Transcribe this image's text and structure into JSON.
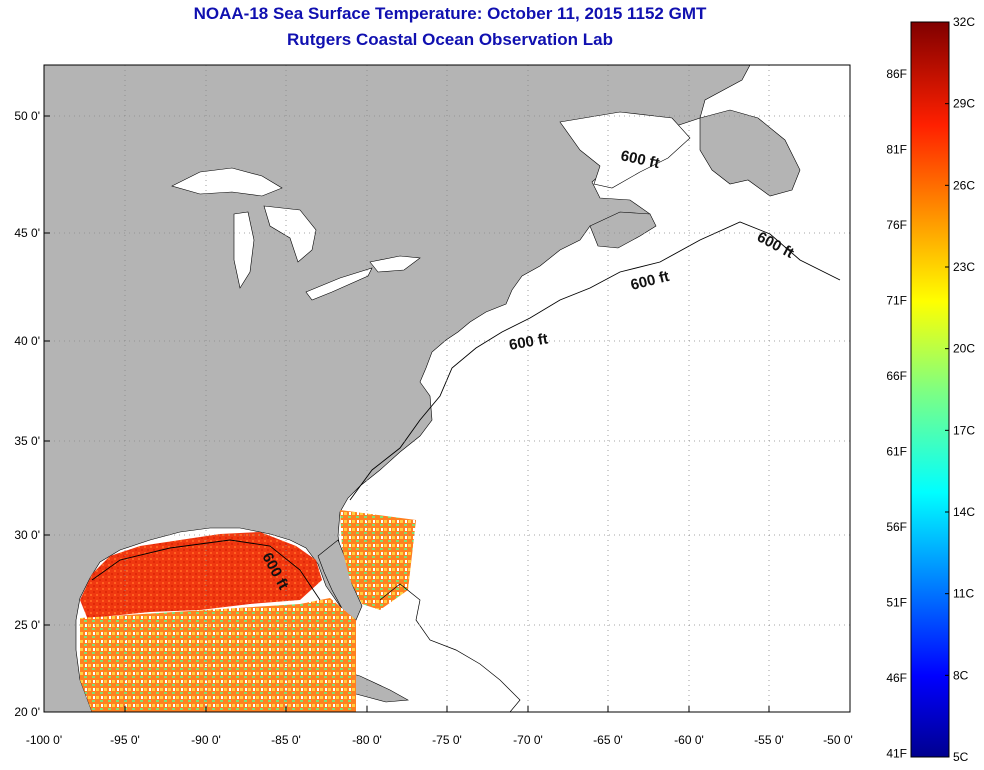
{
  "header": {
    "title": "NOAA-18 Sea Surface Temperature:  October 11, 2015 1152 GMT",
    "subtitle": "Rutgers Coastal Ocean Observation Lab"
  },
  "map": {
    "lon_range": [
      -100,
      -50
    ],
    "lat_range": [
      20,
      52
    ],
    "lon_ticks": [
      "-100 0'",
      "-95 0'",
      "-90 0'",
      "-85 0'",
      "-80 0'",
      "-75 0'",
      "-70 0'",
      "-65 0'",
      "-60 0'",
      "-55 0'",
      "-50 0'"
    ],
    "lat_ticks": [
      "50 0'",
      "45 0'",
      "40 0'",
      "35 0'",
      "30 0'",
      "25 0'",
      "20 0'"
    ],
    "contour_labels": [
      "600 ft",
      "600 ft",
      "600 ft",
      "600 ft",
      "600 ft"
    ],
    "land_color": "#b4b4b4",
    "ocean_color": "#ffffff"
  },
  "colorbar": {
    "celsius": [
      "32C",
      "29C",
      "26C",
      "23C",
      "20C",
      "17C",
      "14C",
      "11C",
      "8C",
      "5C"
    ],
    "fahrenheit": [
      "86F",
      "81F",
      "76F",
      "71F",
      "66F",
      "61F",
      "56F",
      "51F",
      "46F",
      "41F"
    ],
    "range_c": [
      5,
      32
    ]
  }
}
